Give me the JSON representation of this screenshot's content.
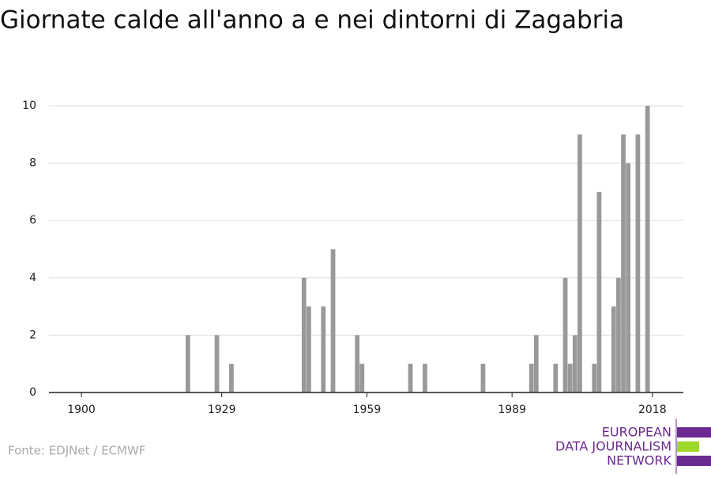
{
  "chart_data": {
    "type": "bar",
    "title": "Giornate calde all'anno a e nei dintorni di Zagabria",
    "source": "Fonte: EDJNet / ECMWF",
    "x": [
      1922,
      1928,
      1931,
      1946,
      1947,
      1950,
      1952,
      1957,
      1958,
      1968,
      1971,
      1983,
      1993,
      1994,
      1998,
      2000,
      2001,
      2002,
      2003,
      2006,
      2007,
      2010,
      2011,
      2012,
      2013,
      2015,
      2017
    ],
    "values": [
      2,
      2,
      1,
      4,
      3,
      3,
      5,
      2,
      1,
      1,
      1,
      1,
      1,
      2,
      1,
      4,
      1,
      2,
      9,
      1,
      7,
      3,
      4,
      9,
      8,
      9,
      10
    ],
    "color": "#999999",
    "xlim": [
      1893.3,
      2024.4
    ],
    "xticks": [
      1900,
      1929,
      1959,
      1989,
      2018
    ],
    "ylim": [
      0,
      10
    ],
    "yticks": [
      0,
      2,
      4,
      6,
      8,
      10
    ],
    "grid": true
  },
  "logo": {
    "lines": [
      "EUROPEAN",
      "DATA JOURNALISM",
      "NETWORK"
    ]
  }
}
